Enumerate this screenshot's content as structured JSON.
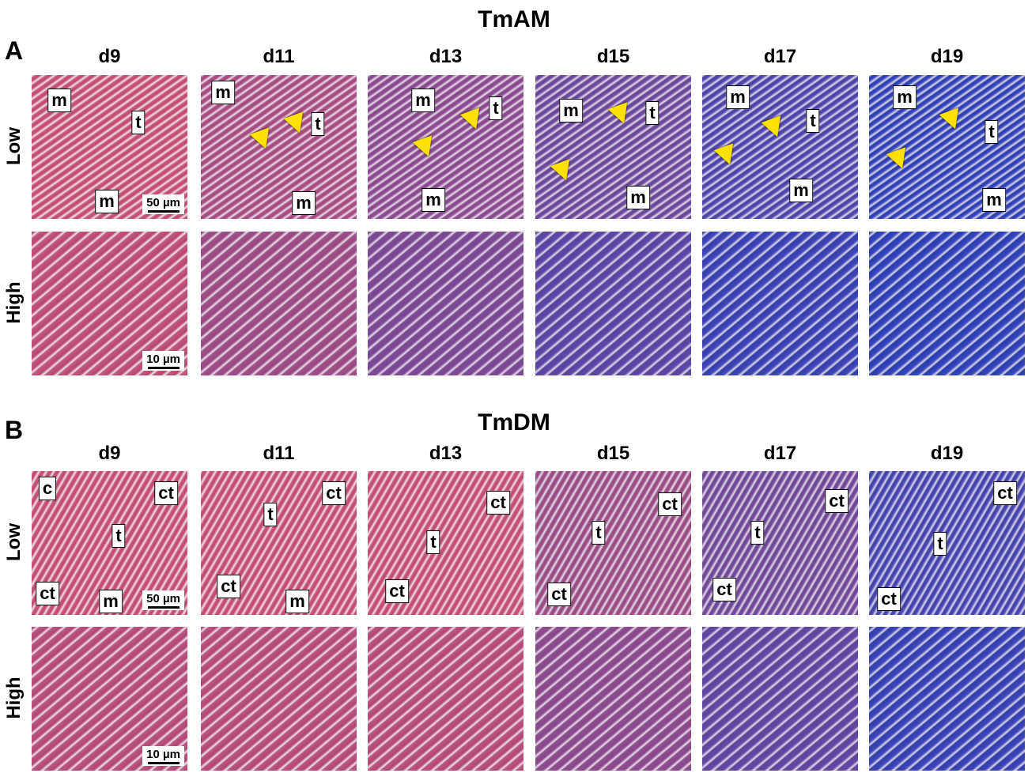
{
  "panels": [
    {
      "letter": "A",
      "title": "TmAM",
      "columns": [
        "d9",
        "d11",
        "d13",
        "d15",
        "d17",
        "d19"
      ],
      "rows": [
        "Low",
        "High"
      ],
      "low_labels": [
        [
          "m",
          "t",
          "m"
        ],
        [
          "m",
          "t",
          "m"
        ],
        [
          "m",
          "t",
          "m"
        ],
        [
          "m",
          "t",
          "m"
        ],
        [
          "m",
          "t",
          "m"
        ],
        [
          "m",
          "t",
          "m"
        ]
      ],
      "scale_bars": [
        "50 µm",
        "10 µm"
      ]
    },
    {
      "letter": "B",
      "title": "TmDM",
      "columns": [
        "d9",
        "d11",
        "d13",
        "d15",
        "d17",
        "d19"
      ],
      "rows": [
        "Low",
        "High"
      ],
      "low_labels": [
        [
          "c",
          "ct",
          "t",
          "ct",
          "m"
        ],
        [
          "ct",
          "t",
          "ct",
          "m"
        ],
        [
          "ct",
          "t",
          "ct"
        ],
        [
          "ct",
          "t",
          "ct"
        ],
        [
          "ct",
          "t",
          "ct"
        ],
        [
          "ct",
          "t",
          "ct"
        ]
      ],
      "scale_bars": [
        "50 µm",
        "10 µm"
      ]
    }
  ]
}
